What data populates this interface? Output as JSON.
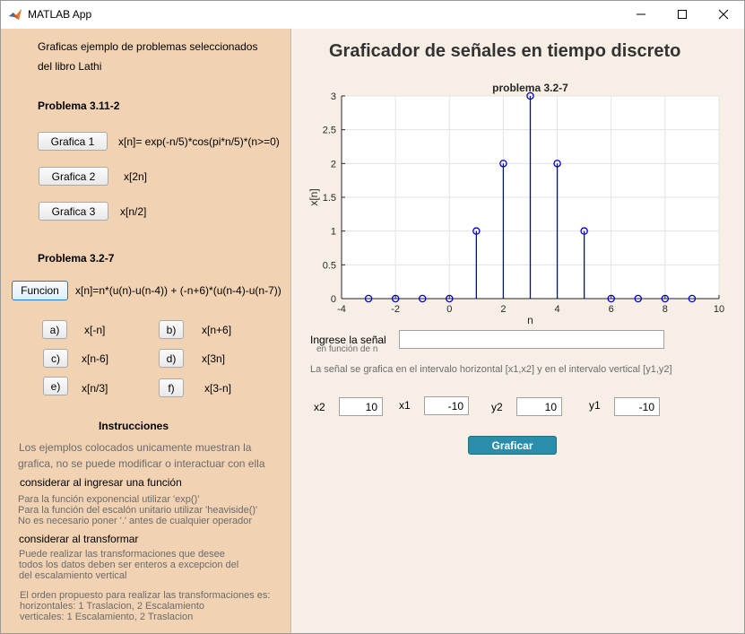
{
  "window": {
    "title": "MATLAB App"
  },
  "sidebar": {
    "intro_line1": "Graficas ejemplo de problemas seleccionados",
    "intro_line2": "del libro Lathi",
    "problem1": {
      "title": "Problema 3.11-2",
      "buttons": [
        {
          "label": "Grafica 1",
          "desc": "x[n]= exp(-n/5)*cos(pi*n/5)*(n>=0)"
        },
        {
          "label": "Grafica 2",
          "desc": "x[2n]"
        },
        {
          "label": "Grafica 3",
          "desc": "x[n/2]"
        }
      ]
    },
    "problem2": {
      "title": "Problema 3.2-7",
      "func_button": "Funcion",
      "func_desc": "x[n]=n*(u(n)-u(n-4)) + (-n+6)*(u(n-4)-u(n-7))",
      "options": [
        {
          "label": "a)",
          "desc": "x[-n]"
        },
        {
          "label": "b)",
          "desc": "x[n+6]"
        },
        {
          "label": "c)",
          "desc": "x[n-6]"
        },
        {
          "label": "d)",
          "desc": "x[3n]"
        },
        {
          "label": "e)",
          "desc": "x[n/3]"
        },
        {
          "label": "f)",
          "desc": "x[3-n]"
        }
      ]
    },
    "instructions": {
      "title": "Instrucciones",
      "p1_line1": "Los ejemplos  colocados unicamente muestran la",
      "p1_line2": "grafica, no se puede modificar  o interactuar con ella",
      "h2": "considerar al ingresar una función",
      "p2_line1": "Para la función exponencial utilizar 'exp()'",
      "p2_line2": "Para la función del escalón unitario utilizar 'heaviside()'",
      "p2_line3": "No es necesario poner '.' antes de cualquier operador",
      "h3": "considerar al transformar",
      "p3_line1": "Puede realizar las transformaciones que desee",
      "p3_line2": "todos los datos deben ser enteros a excepcion del",
      "p3_line3": "del escalamiento vertical",
      "p4_line1": "El orden propuesto para realizar  las  transformaciones es:",
      "p4_line2": "horizontales: 1 Traslacion, 2 Escalamiento",
      "p4_line3": "verticales: 1 Escalamiento, 2 Traslacion"
    }
  },
  "main": {
    "heading": "Graficador de señales en tiempo discreto",
    "input_label": "Ingrese la señal",
    "input_sublabel": "en función de n",
    "input_value": "",
    "hint": "La señal se grafica en el intervalo horizontal [x1,x2] y en el intervalo vertical [y1,y2]",
    "fields": [
      {
        "label": "x2",
        "value": "10"
      },
      {
        "label": "x1",
        "value": "-10"
      },
      {
        "label": "y2",
        "value": "10"
      },
      {
        "label": "y1",
        "value": "-10"
      }
    ],
    "graficar_label": "Graficar"
  },
  "chart_data": {
    "type": "stem",
    "title": "problema 3.2-7",
    "xlabel": "n",
    "ylabel": "x[n]",
    "xlim": [
      -4,
      10
    ],
    "ylim": [
      0,
      3
    ],
    "xticks": [
      "-4",
      "-2",
      "0",
      "2",
      "4",
      "6",
      "8",
      "10"
    ],
    "yticks": [
      "0",
      "0.5",
      "1",
      "1.5",
      "2",
      "2.5",
      "3"
    ],
    "grid": true,
    "color": "#0000c8",
    "x": [
      -3,
      -2,
      -1,
      0,
      1,
      2,
      3,
      4,
      5,
      6,
      7,
      8,
      9
    ],
    "y": [
      0,
      0,
      0,
      0,
      1,
      2,
      3,
      2,
      1,
      0,
      0,
      0,
      0
    ]
  }
}
